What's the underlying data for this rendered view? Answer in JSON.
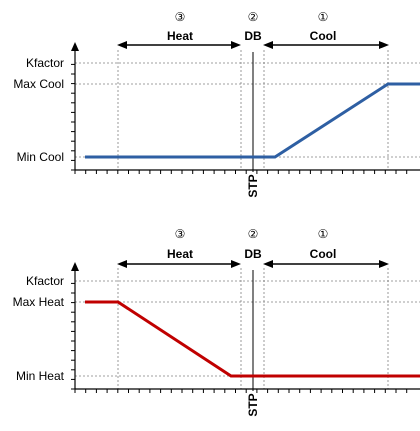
{
  "colors": {
    "cooling_line": "#2e5fa3",
    "heating_line": "#c00000",
    "axis": "#000000",
    "grid": "#808080"
  },
  "zones": [
    {
      "number": "③",
      "label": "Heat"
    },
    {
      "number": "②",
      "label": "DB"
    },
    {
      "number": "①",
      "label": "Cool"
    }
  ],
  "setpoint_label": "STP",
  "charts": [
    {
      "id": "cooling",
      "y_labels": {
        "top": "Kfactor",
        "max": "Max Cool",
        "min": "Min Cool"
      },
      "profile": "cool"
    },
    {
      "id": "heating",
      "y_labels": {
        "top": "Kfactor",
        "max": "Max Heat",
        "min": "Min Heat"
      },
      "profile": "heat"
    }
  ]
}
